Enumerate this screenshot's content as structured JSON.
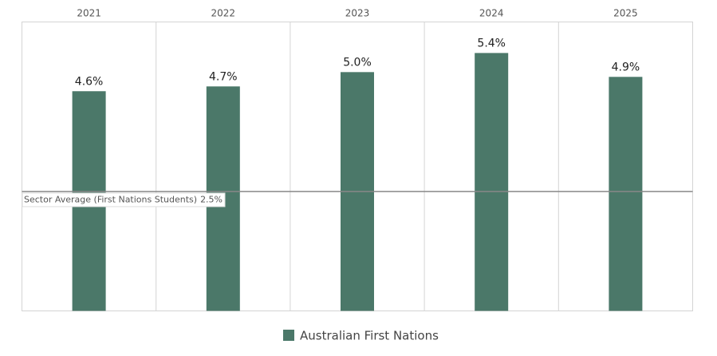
{
  "chart_data": {
    "type": "bar",
    "categories": [
      "2021",
      "2022",
      "2023",
      "2024",
      "2025"
    ],
    "values": [
      4.6,
      4.7,
      5.0,
      5.4,
      4.9
    ],
    "value_labels": [
      "4.6%",
      "4.7%",
      "5.0%",
      "5.4%",
      "4.9%"
    ],
    "series_name": "Australian First Nations",
    "color": "#4b7869",
    "ylim": [
      0,
      6.05
    ],
    "reference_line": {
      "label": "Sector Average (First Nations Students)",
      "value": 2.5,
      "value_label": "2.5%"
    }
  }
}
